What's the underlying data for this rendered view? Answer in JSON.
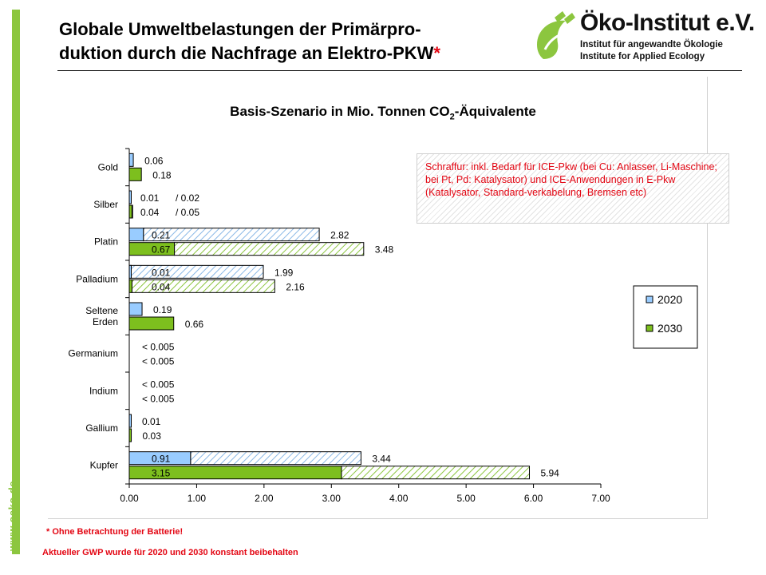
{
  "slide": {
    "title_line1": "Globale Umweltbelastungen der Primärpro-",
    "title_line2": "duktion durch die Nachfrage an Elektro-PKW",
    "title_star": "*",
    "side_url": "www.oeko.de",
    "footnote_battery": "* Ohne Betrachtung  der Batterie!",
    "footnote_gwp": "Aktueller GWP wurde für 2020 und 2030 konstant  beibehalten"
  },
  "logo": {
    "name": "Öko-Institut e.V.",
    "line_de": "Institut für angewandte Ökologie",
    "line_en": "Institute for Applied Ecology",
    "green": "#8cc63f"
  },
  "note": {
    "text": "Schraffur: inkl. Bedarf für ICE-Pkw (bei Cu: Anlasser, Li-Maschine; bei Pt, Pd: Katalysator) und ICE-Anwendungen in E-Pkw (Katalysator, Standard-verkabelung, Bremsen etc)"
  },
  "chart_data": {
    "type": "bar",
    "orientation": "horizontal",
    "title": "Basis-Szenario in Mio. Tonnen CO",
    "title_sub": "2",
    "title_suffix": "-Äquivalente",
    "categories": [
      "Gold",
      "Silber",
      "Platin",
      "Palladium",
      "Seltene Erden",
      "Germanium",
      "Indium",
      "Gallium",
      "Kupfer"
    ],
    "category_lines": [
      [
        "Gold"
      ],
      [
        "Silber"
      ],
      [
        "Platin"
      ],
      [
        "Palladium"
      ],
      [
        "Seltene",
        "Erden"
      ],
      [
        "Germanium"
      ],
      [
        "Indium"
      ],
      [
        "Gallium"
      ],
      [
        "Kupfer"
      ]
    ],
    "series": [
      {
        "name": "2020",
        "color": "#99ccff",
        "values_solid": [
          0.06,
          0.01,
          0.21,
          0.01,
          0.19,
          0,
          0,
          0.01,
          0.91
        ],
        "values_hatched_total": [
          null,
          0.02,
          2.82,
          1.99,
          null,
          null,
          null,
          null,
          3.44
        ],
        "labels_solid": [
          "0.06",
          "0.01",
          "0.21",
          "0.01",
          "0.19",
          "< 0.005",
          "< 0.005",
          "0.01",
          "0.91"
        ],
        "labels_total": [
          null,
          "/ 0.02",
          "2.82",
          "1.99",
          null,
          null,
          null,
          null,
          "3.44"
        ]
      },
      {
        "name": "2030",
        "color": "#7dbf1e",
        "values_solid": [
          0.18,
          0.04,
          0.67,
          0.04,
          0.66,
          0,
          0,
          0.03,
          3.15
        ],
        "values_hatched_total": [
          null,
          0.05,
          3.48,
          2.16,
          null,
          null,
          null,
          null,
          5.94
        ],
        "labels_solid": [
          "0.18",
          "0.04",
          "0.67",
          "0.04",
          "0.66",
          "< 0.005",
          "< 0.005",
          "0.03",
          "3.15"
        ],
        "labels_total": [
          null,
          "/ 0.05",
          "3.48",
          "2.16",
          null,
          null,
          null,
          null,
          "5.94"
        ]
      }
    ],
    "xlim": [
      0,
      7
    ],
    "xticks": [
      "0.00",
      "1.00",
      "2.00",
      "3.00",
      "4.00",
      "5.00",
      "6.00",
      "7.00"
    ],
    "legend_position": "right",
    "grid": false
  }
}
